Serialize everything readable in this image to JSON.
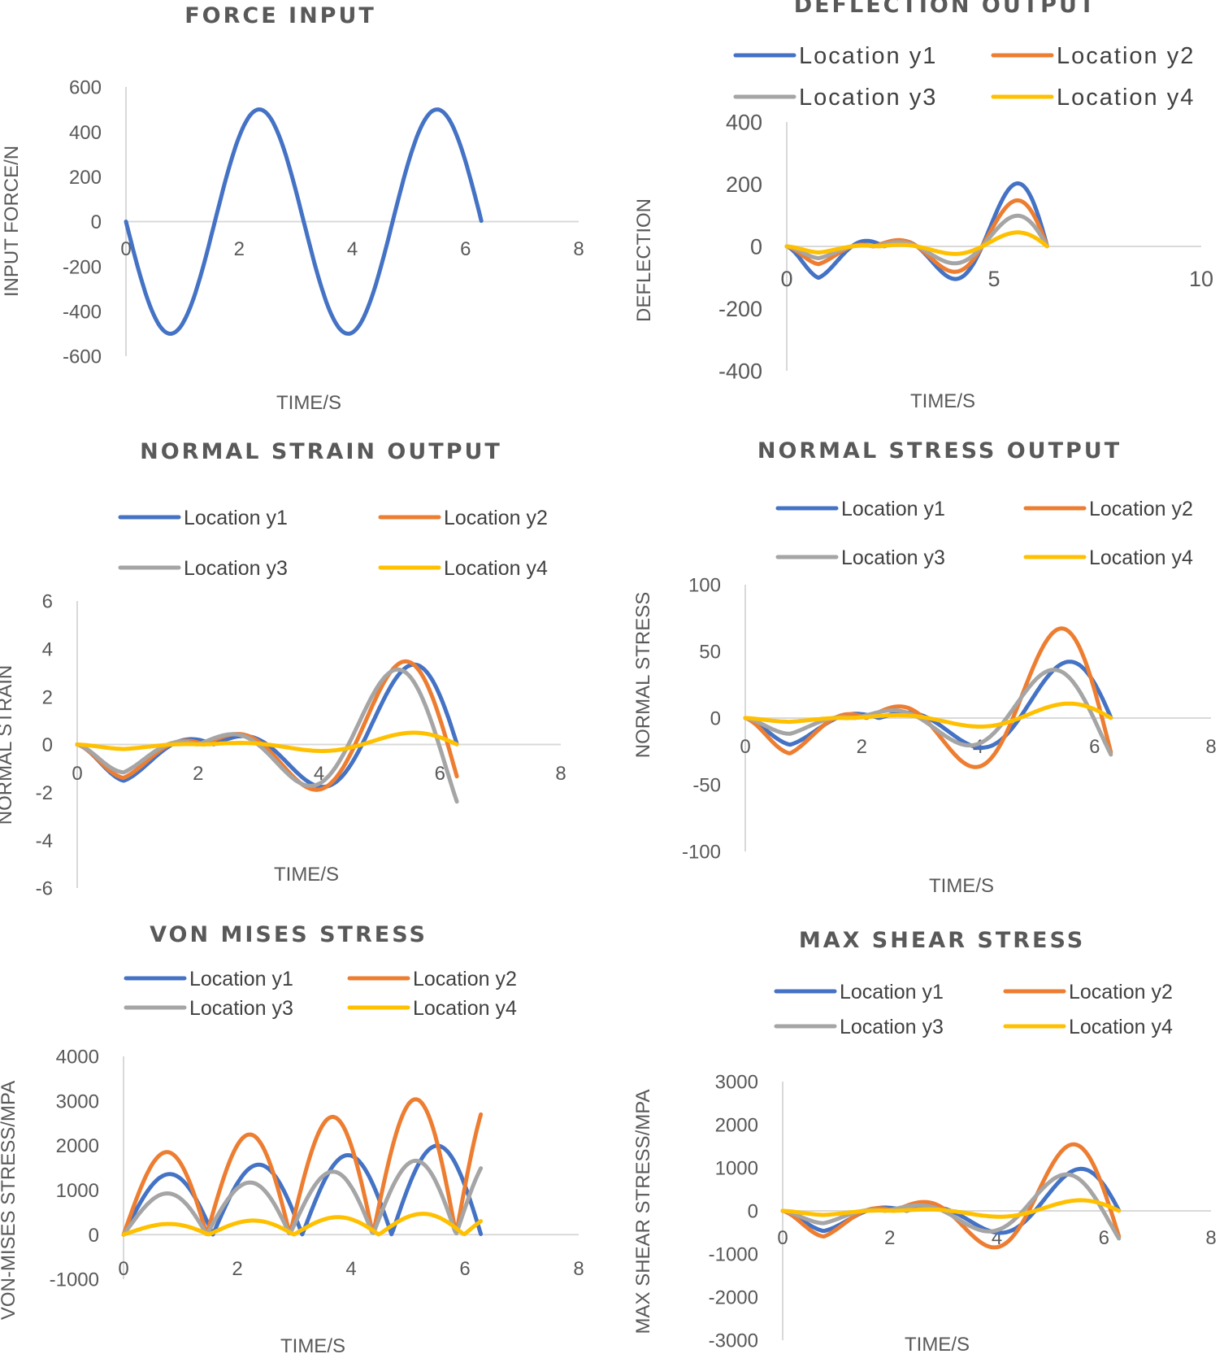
{
  "colors": {
    "y1": "#4472c4",
    "y2": "#ed7d31",
    "y3": "#a5a5a5",
    "y4": "#ffc000"
  },
  "chart_data": [
    {
      "type": "line",
      "id": "force",
      "title": "FORCE INPUT",
      "xlabel": "TIME/S",
      "ylabel": "INPUT FORCE/N",
      "xlim": [
        0,
        8
      ],
      "ylim": [
        -600,
        600
      ],
      "xticks": [
        "0",
        "2",
        "4",
        "6",
        "8"
      ],
      "yticks": [
        "600",
        "400",
        "200",
        "0",
        "-200",
        "-400",
        "-600"
      ],
      "legend": [],
      "series": [
        {
          "name": "Force",
          "color": "#4472c4",
          "model": {
            "kind": "sin",
            "A": -500,
            "w": 2,
            "xmax": 6.28
          }
        }
      ]
    },
    {
      "type": "line",
      "id": "deflection",
      "title": "DEFLECTION OUTPUT",
      "xlabel": "TIME/S",
      "ylabel": "DEFLECTION",
      "xlim": [
        0,
        10
      ],
      "ylim": [
        -400,
        400
      ],
      "xticks": [
        "0",
        "5",
        "10"
      ],
      "yticks": [
        "400",
        "200",
        "0",
        "-200",
        "-400"
      ],
      "legend": [
        "Location y1",
        "Location y2",
        "Location y3",
        "Location y4"
      ],
      "series": [
        {
          "name": "Location y1",
          "color": "#4472c4",
          "model": {
            "kind": "growosc",
            "a": -150,
            "b": 250,
            "w": 2,
            "xmax": 6.28
          }
        },
        {
          "name": "Location y2",
          "color": "#ed7d31",
          "model": {
            "kind": "growosc",
            "a": -90,
            "b": 180,
            "w": 2,
            "xmax": 6.28
          }
        },
        {
          "name": "Location y3",
          "color": "#a5a5a5",
          "model": {
            "kind": "growosc",
            "a": -60,
            "b": 120,
            "w": 2,
            "xmax": 6.28
          }
        },
        {
          "name": "Location y4",
          "color": "#ffc000",
          "model": {
            "kind": "growosc",
            "a": -30,
            "b": 55,
            "w": 2,
            "xmax": 6.28
          }
        }
      ]
    },
    {
      "type": "line",
      "id": "strain",
      "title": "NORMAL STRAIN OUTPUT",
      "xlabel": "TIME/S",
      "ylabel": "NORMAL STRAIN",
      "xlim": [
        0,
        8
      ],
      "ylim": [
        -6,
        6
      ],
      "xticks": [
        "0",
        "2",
        "4",
        "6",
        "8"
      ],
      "yticks": [
        "6",
        "4",
        "2",
        "0",
        "-2",
        "-4",
        "-6"
      ],
      "legend": [
        "Location y1",
        "Location y2",
        "Location y3",
        "Location y4"
      ],
      "series": [
        {
          "name": "Location y1",
          "color": "#4472c4",
          "model": {
            "kind": "growosc",
            "a": -2.3,
            "b": 4.1,
            "w": 2,
            "xmax": 6.28
          }
        },
        {
          "name": "Location y2",
          "color": "#ed7d31",
          "model": {
            "kind": "growosc",
            "a": -2.2,
            "b": 4.4,
            "w": 2.05,
            "xmax": 6.28
          }
        },
        {
          "name": "Location y3",
          "color": "#a5a5a5",
          "model": {
            "kind": "growosc",
            "a": -1.9,
            "b": 4.1,
            "w": 2.1,
            "xmax": 6.28
          }
        },
        {
          "name": "Location y4",
          "color": "#ffc000",
          "model": {
            "kind": "growosc",
            "a": -0.3,
            "b": 0.6,
            "w": 2,
            "xmax": 6.28
          }
        }
      ]
    },
    {
      "type": "line",
      "id": "stress",
      "title": "NORMAL STRESS OUTPUT",
      "xlabel": "TIME/S",
      "ylabel": "NORMAL STRESS",
      "xlim": [
        0,
        8
      ],
      "ylim": [
        -100,
        100
      ],
      "xticks": [
        "0",
        "2",
        "4",
        "6",
        "8"
      ],
      "yticks": [
        "100",
        "50",
        "0",
        "-50",
        "-100"
      ],
      "legend": [
        "Location y1",
        "Location y2",
        "Location y3",
        "Location y4"
      ],
      "series": [
        {
          "name": "Location y1",
          "color": "#4472c4",
          "model": {
            "kind": "growosc",
            "a": -30,
            "b": 52,
            "w": 2,
            "xmax": 6.28
          }
        },
        {
          "name": "Location y2",
          "color": "#ed7d31",
          "model": {
            "kind": "growosc",
            "a": -42,
            "b": 85,
            "w": 2.05,
            "xmax": 6.28
          }
        },
        {
          "name": "Location y3",
          "color": "#a5a5a5",
          "model": {
            "kind": "growosc",
            "a": -20,
            "b": 47,
            "w": 2.1,
            "xmax": 6.28
          }
        },
        {
          "name": "Location y4",
          "color": "#ffc000",
          "model": {
            "kind": "growosc",
            "a": -5,
            "b": 13,
            "w": 2,
            "xmax": 6.28
          }
        }
      ]
    },
    {
      "type": "line",
      "id": "vonmises",
      "title": "VON MISES STRESS",
      "xlabel": "",
      "ylabel": "VON-MISES STRESS/MPA",
      "xlim": [
        0,
        8
      ],
      "ylim": [
        -1000,
        4000
      ],
      "xticks": [
        "0",
        "2",
        "4",
        "6",
        "8"
      ],
      "yticks": [
        "4000",
        "3000",
        "2000",
        "1000",
        "0",
        "-1000"
      ],
      "legend": [
        "Location y1",
        "Location y2",
        "Location y3",
        "Location y4"
      ],
      "series": [
        {
          "name": "Location y1",
          "color": "#4472c4",
          "model": {
            "kind": "absosc",
            "a": 1250,
            "b": 2100,
            "w": 2,
            "xmax": 6.28
          }
        },
        {
          "name": "Location y2",
          "color": "#ed7d31",
          "model": {
            "kind": "absosc",
            "a": 1650,
            "b": 3350,
            "w": 2.15,
            "xmax": 6.28
          }
        },
        {
          "name": "Location y3",
          "color": "#a5a5a5",
          "model": {
            "kind": "absosc",
            "a": 800,
            "b": 1850,
            "w": 2.15,
            "xmax": 6.28
          }
        },
        {
          "name": "Location y4",
          "color": "#ffc000",
          "model": {
            "kind": "absosc",
            "a": 200,
            "b": 520,
            "w": 2.1,
            "xmax": 6.28
          }
        }
      ]
    },
    {
      "type": "line",
      "id": "shear",
      "title": "MAX SHEAR STRESS",
      "xlabel": "TIME/S",
      "ylabel": "MAX SHEAR STRESS/MPA",
      "xlim": [
        0,
        8
      ],
      "ylim": [
        -3000,
        3000
      ],
      "xticks": [
        "0",
        "2",
        "4",
        "6",
        "8"
      ],
      "yticks": [
        "3000",
        "2000",
        "1000",
        "0",
        "-1000",
        "-2000",
        "-3000"
      ],
      "legend": [
        "Location y1",
        "Location y2",
        "Location y3",
        "Location y4"
      ],
      "series": [
        {
          "name": "Location y1",
          "color": "#4472c4",
          "model": {
            "kind": "growosc",
            "a": -700,
            "b": 1200,
            "w": 2,
            "xmax": 6.28
          }
        },
        {
          "name": "Location y2",
          "color": "#ed7d31",
          "model": {
            "kind": "growosc",
            "a": -950,
            "b": 1950,
            "w": 2.05,
            "xmax": 6.28
          }
        },
        {
          "name": "Location y3",
          "color": "#a5a5a5",
          "model": {
            "kind": "growosc",
            "a": -480,
            "b": 1100,
            "w": 2.1,
            "xmax": 6.28
          }
        },
        {
          "name": "Location y4",
          "color": "#ffc000",
          "model": {
            "kind": "growosc",
            "a": -150,
            "b": 300,
            "w": 2,
            "xmax": 6.28
          }
        }
      ]
    }
  ],
  "footer": {
    "xlabel": "TIME/S"
  }
}
